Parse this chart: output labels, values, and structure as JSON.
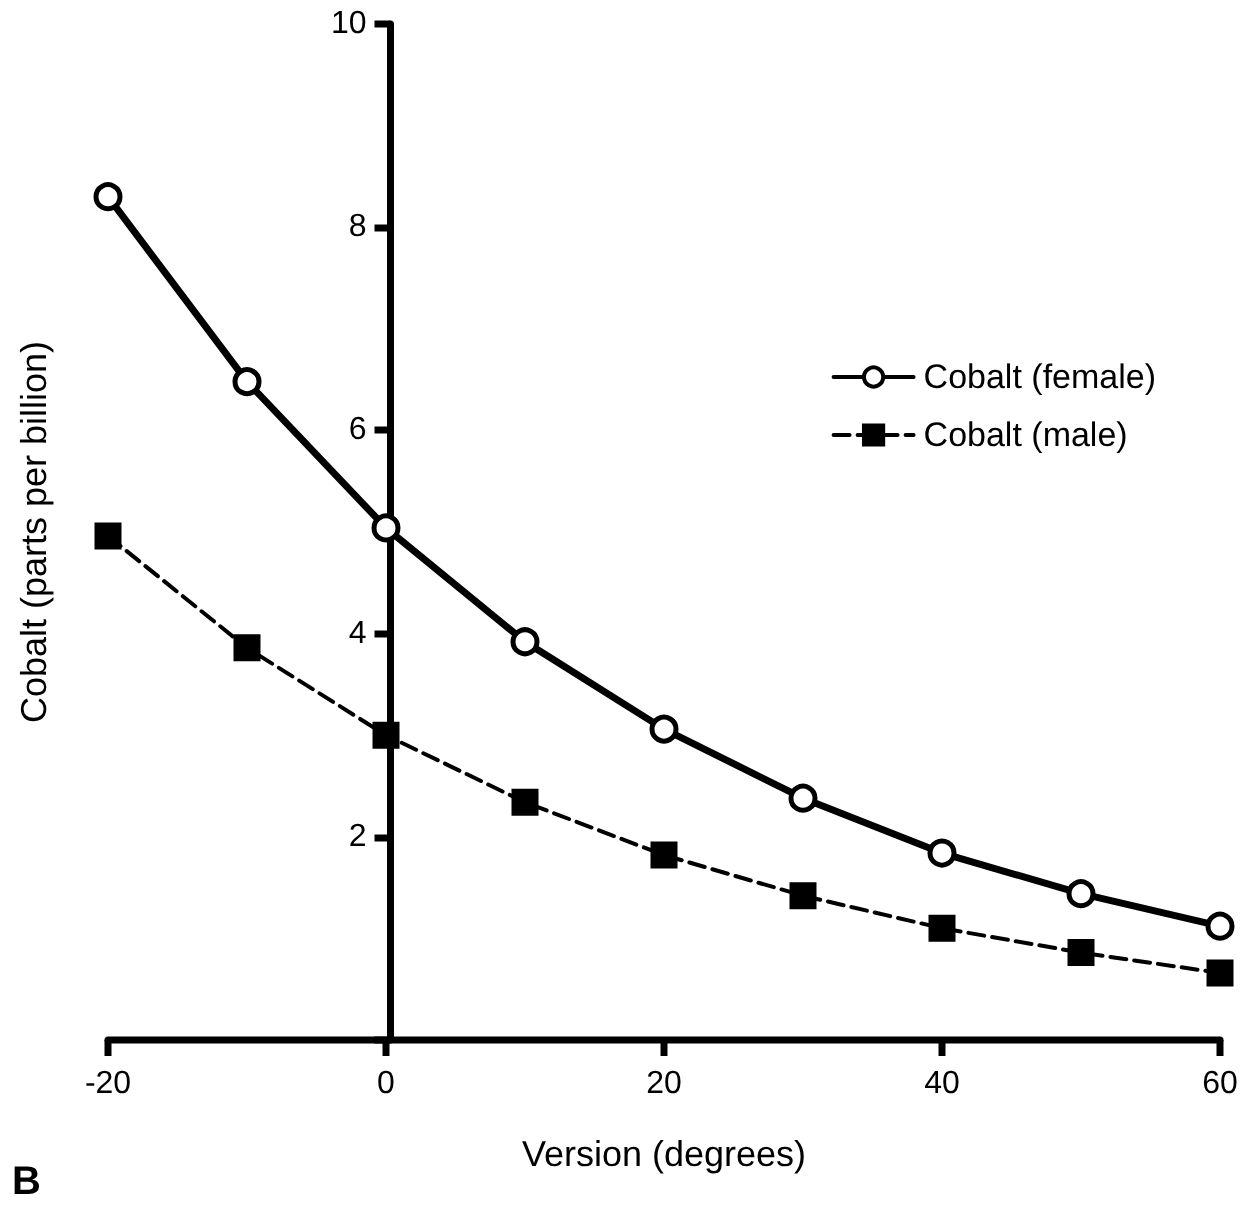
{
  "chart_data": {
    "type": "line",
    "xlabel": "Version (degrees)",
    "ylabel": "Cobalt (parts per billion)",
    "annotations": [
      "B"
    ],
    "x": [
      -20,
      -10,
      0,
      10,
      20,
      30,
      40,
      50,
      60
    ],
    "series": [
      {
        "name": "Cobalt (female)",
        "color": "#000000",
        "marker": "circle",
        "line_style": "solid",
        "values": [
          8.3,
          6.48,
          5.04,
          3.92,
          3.06,
          2.38,
          1.84,
          1.44,
          1.12
        ]
      },
      {
        "name": "Cobalt (male)",
        "color": "#000000",
        "marker": "square",
        "line_style": "dashed",
        "values": [
          4.96,
          3.86,
          3.0,
          2.34,
          1.82,
          1.42,
          1.1,
          0.86,
          0.66
        ]
      }
    ],
    "xlim": [
      -20,
      60
    ],
    "xticks": [
      -20,
      0,
      20,
      40,
      60
    ],
    "ylim": [
      0,
      10
    ],
    "yticks": [
      {
        "value": 0,
        "label": null
      },
      2,
      4,
      6,
      8,
      10
    ],
    "grid": false,
    "legend": "top right"
  }
}
